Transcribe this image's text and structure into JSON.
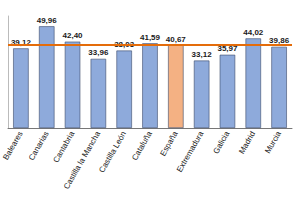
{
  "chart_data": {
    "type": "bar",
    "categories": [
      "Baleares",
      "Canarias",
      "Cantabria",
      "Castilla la Mancha",
      "Castilla León",
      "Cataluña",
      "España",
      "Extremadura",
      "Galicia",
      "Madrid",
      "Murcia"
    ],
    "values": [
      39.12,
      49.96,
      42.4,
      33.96,
      38.03,
      41.59,
      40.67,
      33.12,
      35.97,
      44.02,
      39.86
    ],
    "value_labels": [
      "39,12",
      "49,96",
      "42,40",
      "33,96",
      "38,03",
      "41,59",
      "40,67",
      "33,12",
      "35,97",
      "44,02",
      "39,86"
    ],
    "colors": [
      "#8eaadb",
      "#8eaadb",
      "#8eaadb",
      "#8eaadb",
      "#8eaadb",
      "#8eaadb",
      "#f4b183",
      "#8eaadb",
      "#8eaadb",
      "#8eaadb",
      "#8eaadb"
    ],
    "reference_line": {
      "value": 40.67,
      "color": "#e46c0a"
    },
    "ylim": [
      0,
      55
    ],
    "data_labels": true,
    "tick_labels": "x",
    "grid": false
  }
}
